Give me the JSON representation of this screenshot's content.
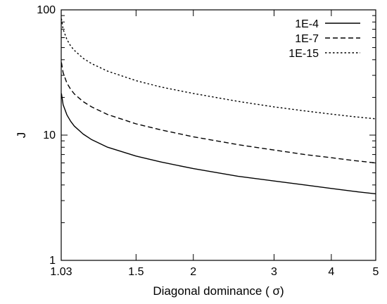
{
  "chart_data": {
    "type": "line",
    "title": "",
    "xlabel": "Diagonal dominance ( σ)",
    "ylabel": "J",
    "xscale": "log",
    "yscale": "log",
    "xlim": [
      1.03,
      5
    ],
    "ylim": [
      1,
      100
    ],
    "xticks": [
      {
        "value": 1.03,
        "label": "1.03"
      },
      {
        "value": 1.5,
        "label": "1.5"
      },
      {
        "value": 2,
        "label": "2"
      },
      {
        "value": 3,
        "label": "3"
      },
      {
        "value": 4,
        "label": "4"
      },
      {
        "value": 5,
        "label": "5"
      }
    ],
    "yticks": [
      {
        "value": 1,
        "label": "1"
      },
      {
        "value": 10,
        "label": "10"
      },
      {
        "value": 100,
        "label": "100"
      }
    ],
    "grid": false,
    "legend_position": "top-right",
    "series": [
      {
        "name": "1E-4",
        "style": "solid",
        "x": [
          1.031,
          1.04,
          1.06,
          1.08,
          1.1,
          1.15,
          1.2,
          1.3,
          1.5,
          1.7,
          2.0,
          2.5,
          3.0,
          3.5,
          4.0,
          4.5,
          5.0
        ],
        "y": [
          21.5,
          17.5,
          14.5,
          12.9,
          11.8,
          10.2,
          9.2,
          8.0,
          6.8,
          6.1,
          5.4,
          4.7,
          4.3,
          4.0,
          3.75,
          3.55,
          3.4
        ]
      },
      {
        "name": "1E-7",
        "style": "dashed",
        "x": [
          1.031,
          1.04,
          1.06,
          1.08,
          1.1,
          1.15,
          1.2,
          1.3,
          1.5,
          1.7,
          2.0,
          2.5,
          3.0,
          3.5,
          4.0,
          4.5,
          5.0
        ],
        "y": [
          38.0,
          31.5,
          26.0,
          23.2,
          21.3,
          18.5,
          16.8,
          14.6,
          12.3,
          11.0,
          9.7,
          8.4,
          7.6,
          7.0,
          6.6,
          6.25,
          6.0
        ]
      },
      {
        "name": "1E-15",
        "style": "dotted",
        "x": [
          1.031,
          1.04,
          1.06,
          1.08,
          1.1,
          1.15,
          1.2,
          1.3,
          1.5,
          1.7,
          2.0,
          2.5,
          3.0,
          3.5,
          4.0,
          4.5,
          5.0
        ],
        "y": [
          85.0,
          70.0,
          58.0,
          51.5,
          47.5,
          41.0,
          37.2,
          32.4,
          27.2,
          24.2,
          21.5,
          18.6,
          16.8,
          15.6,
          14.7,
          14.0,
          13.5
        ]
      }
    ]
  }
}
